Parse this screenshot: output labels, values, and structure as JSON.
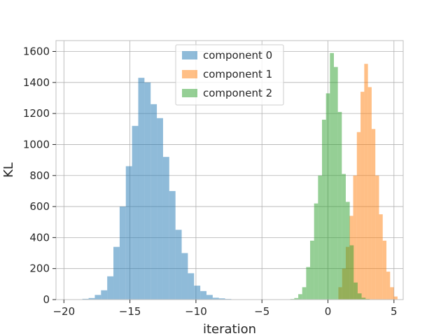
{
  "chart_data": {
    "type": "histogram",
    "xlabel": "iteration",
    "ylabel": "KL",
    "xlim": [
      -20.6,
      5.7
    ],
    "ylim": [
      0,
      1670
    ],
    "xticks": [
      -20,
      -15,
      -10,
      -5,
      0,
      5
    ],
    "xtick_labels": [
      "−20",
      "−15",
      "−10",
      "−5",
      "0",
      "5"
    ],
    "yticks": [
      0,
      200,
      400,
      600,
      800,
      1000,
      1200,
      1400,
      1600
    ],
    "ytick_labels": [
      "0",
      "200",
      "400",
      "600",
      "800",
      "1000",
      "1200",
      "1400",
      "1600"
    ],
    "grid": true,
    "legend_position": "upper-center",
    "series": [
      {
        "name": "component 0",
        "color": "#1f77b4",
        "alpha": 0.5,
        "bin_start": -18.6,
        "bin_width": 0.47,
        "counts": [
          5,
          10,
          30,
          60,
          150,
          340,
          600,
          860,
          1120,
          1430,
          1400,
          1260,
          1170,
          920,
          700,
          450,
          300,
          170,
          90,
          55,
          30,
          12,
          8,
          4,
          2,
          1
        ]
      },
      {
        "name": "component 1",
        "color": "#ff7f0e",
        "alpha": 0.5,
        "bin_start": 0.79,
        "bin_width": 0.28,
        "counts": [
          80,
          200,
          340,
          540,
          800,
          1080,
          1340,
          1520,
          1370,
          1100,
          800,
          550,
          380,
          180,
          80,
          20
        ]
      },
      {
        "name": "component 2",
        "color": "#2ca02c",
        "alpha": 0.5,
        "bin_start": -3.15,
        "bin_width": 0.3,
        "counts": [
          2,
          4,
          10,
          35,
          80,
          210,
          380,
          620,
          800,
          1160,
          1330,
          1590,
          1500,
          1210,
          810,
          630,
          350,
          110,
          40,
          12,
          4
        ]
      }
    ]
  }
}
